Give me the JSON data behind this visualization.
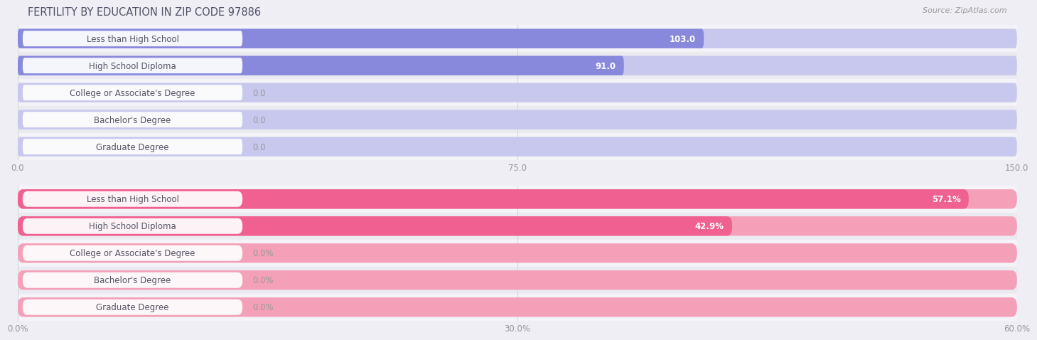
{
  "title": "FERTILITY BY EDUCATION IN ZIP CODE 97886",
  "source": "Source: ZipAtlas.com",
  "background_color": "#eeeef4",
  "top_chart": {
    "categories": [
      "Less than High School",
      "High School Diploma",
      "College or Associate's Degree",
      "Bachelor's Degree",
      "Graduate Degree"
    ],
    "values": [
      103.0,
      91.0,
      0.0,
      0.0,
      0.0
    ],
    "labels": [
      "103.0",
      "91.0",
      "0.0",
      "0.0",
      "0.0"
    ],
    "xlim": [
      0,
      150
    ],
    "xticks": [
      0.0,
      75.0,
      150.0
    ],
    "xtick_labels": [
      "0.0",
      "75.0",
      "150.0"
    ],
    "bar_color": "#8888dd",
    "bar_bg_color": "#c8c8ee",
    "row_bg_odd": "#f4f4f8",
    "row_bg_even": "#eaeaf0"
  },
  "bottom_chart": {
    "categories": [
      "Less than High School",
      "High School Diploma",
      "College or Associate's Degree",
      "Bachelor's Degree",
      "Graduate Degree"
    ],
    "values": [
      57.1,
      42.9,
      0.0,
      0.0,
      0.0
    ],
    "labels": [
      "57.1%",
      "42.9%",
      "0.0%",
      "0.0%",
      "0.0%"
    ],
    "xlim": [
      0,
      60
    ],
    "xticks": [
      0.0,
      30.0,
      60.0
    ],
    "xtick_labels": [
      "0.0%",
      "30.0%",
      "60.0%"
    ],
    "bar_color": "#f06090",
    "bar_bg_color": "#f4a0b8",
    "row_bg_odd": "#f4f4f8",
    "row_bg_even": "#eaeaf0"
  },
  "bar_height": 0.72,
  "title_fontsize": 10.5,
  "source_fontsize": 8,
  "label_fontsize": 8.5,
  "tick_fontsize": 8.5,
  "category_fontsize": 8.5,
  "title_color": "#505068",
  "tick_color": "#999999",
  "grid_color": "#d0d0d8",
  "label_bg_color": "#ffffff",
  "label_text_color": "#555566"
}
